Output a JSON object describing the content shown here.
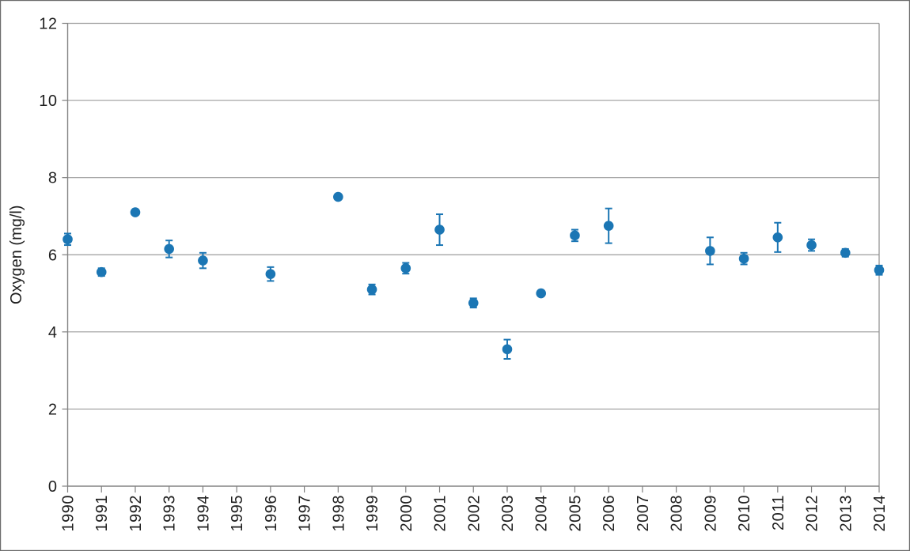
{
  "chart": {
    "background": "#ffffff",
    "border_color": "#6b6b6b",
    "colors": {
      "marker": "#1b76b4",
      "gridline": "#9c9c9c",
      "axis": "#848484",
      "tick": "#7f7f7f",
      "plot_border": "#8c8c8c",
      "label_text": "#1f1f1f"
    },
    "y_axis": {
      "title": "Oxygen (mg/l)",
      "tick_labels": [
        "0",
        "2",
        "4",
        "6",
        "8",
        "10",
        "12"
      ]
    },
    "x_axis": {
      "tick_labels": [
        "1990",
        "1991",
        "1992",
        "1993",
        "1994",
        "1995",
        "1996",
        "1997",
        "1998",
        "1999",
        "2000",
        "2001",
        "2002",
        "2003",
        "2004",
        "2005",
        "2006",
        "2007",
        "2008",
        "2009",
        "2010",
        "2011",
        "2012",
        "2013",
        "2014"
      ]
    }
  },
  "chart_data": {
    "type": "scatter",
    "title": "",
    "xlabel": "",
    "ylabel": "Oxygen (mg/l)",
    "ylim": [
      0,
      12
    ],
    "ytick_step": 2,
    "grid": "horizontal-only",
    "legend": "none",
    "error_bars": "vertical-with-caps",
    "x": [
      1990,
      1991,
      1992,
      1993,
      1994,
      1995,
      1996,
      1997,
      1998,
      1999,
      2000,
      2001,
      2002,
      2003,
      2004,
      2005,
      2006,
      2007,
      2008,
      2009,
      2010,
      2011,
      2012,
      2013,
      2014
    ],
    "series": [
      {
        "name": "Oxygen",
        "values": [
          6.4,
          5.55,
          7.1,
          6.15,
          5.85,
          null,
          5.5,
          null,
          7.5,
          5.1,
          5.65,
          6.65,
          4.75,
          3.55,
          5.0,
          6.5,
          6.75,
          null,
          null,
          6.1,
          5.9,
          6.45,
          6.25,
          6.05,
          5.6
        ],
        "errors": [
          0.15,
          0.1,
          0.05,
          0.22,
          0.2,
          null,
          0.18,
          null,
          0.05,
          0.13,
          0.14,
          0.4,
          0.12,
          0.25,
          0.05,
          0.15,
          0.45,
          null,
          null,
          0.35,
          0.15,
          0.38,
          0.15,
          0.1,
          0.12
        ]
      }
    ]
  }
}
